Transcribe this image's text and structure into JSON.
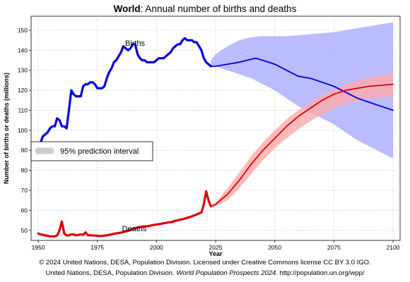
{
  "chart_data": {
    "type": "line",
    "title_bold": "World",
    "title_rest": ": Annual number of births and deaths",
    "xlabel": "Year",
    "ylabel": "Number of births or deaths (millions)",
    "xlim": [
      1947,
      2103
    ],
    "ylim": [
      45,
      157
    ],
    "xticks": [
      1950,
      1975,
      2000,
      2025,
      2050,
      2075,
      2100
    ],
    "yticks": [
      50,
      60,
      70,
      80,
      90,
      100,
      110,
      120,
      130,
      140,
      150
    ],
    "grid": true,
    "annotations": {
      "births": "Births",
      "deaths": "Deaths"
    },
    "legend": {
      "label": "95% prediction interval",
      "placement": "left"
    },
    "colors": {
      "births": "#0000dd",
      "deaths": "#dd0000",
      "births_band": "#aaaaff",
      "deaths_band": "#ffaaaa",
      "legend_swatch": "#cccccc"
    },
    "series": [
      {
        "key": "births",
        "x": [
          1950,
          1951,
          1952,
          1953,
          1954,
          1955,
          1956,
          1957,
          1958,
          1959,
          1960,
          1961,
          1962,
          1963,
          1964,
          1965,
          1966,
          1967,
          1968,
          1969,
          1970,
          1971,
          1972,
          1973,
          1974,
          1975,
          1976,
          1977,
          1978,
          1979,
          1980,
          1981,
          1982,
          1983,
          1984,
          1985,
          1986,
          1987,
          1988,
          1989,
          1990,
          1991,
          1992,
          1993,
          1994,
          1995,
          1996,
          1997,
          1998,
          1999,
          2000,
          2001,
          2002,
          2003,
          2004,
          2005,
          2006,
          2007,
          2008,
          2009,
          2010,
          2011,
          2012,
          2013,
          2014,
          2015,
          2016,
          2017,
          2018,
          2019,
          2020,
          2021,
          2022,
          2023,
          2025,
          2030,
          2035,
          2040,
          2042,
          2045,
          2050,
          2055,
          2060,
          2065,
          2070,
          2075,
          2080,
          2085,
          2090,
          2095,
          2100
        ],
        "values": [
          92,
          94,
          97,
          98,
          99,
          101,
          102,
          102,
          106,
          105,
          102,
          102,
          101,
          110,
          120,
          118,
          117,
          117,
          117,
          122,
          123,
          123,
          124,
          124,
          123,
          121,
          121,
          121,
          122,
          126,
          129,
          131,
          134,
          135,
          137,
          139,
          142,
          141,
          140,
          141,
          143,
          143,
          138,
          136,
          135,
          135,
          134,
          134,
          134,
          134,
          135,
          136,
          136,
          136,
          137,
          138,
          139,
          141,
          142,
          143,
          143,
          145,
          146,
          145,
          145,
          145,
          144,
          144,
          142,
          140,
          136,
          134,
          133,
          132,
          132,
          133,
          134,
          135.5,
          136,
          135,
          133,
          130,
          127,
          126,
          124,
          122,
          119,
          116,
          114,
          112,
          110
        ]
      },
      {
        "key": "deaths",
        "x": [
          1950,
          1951,
          1952,
          1953,
          1954,
          1955,
          1956,
          1957,
          1958,
          1959,
          1960,
          1961,
          1962,
          1963,
          1964,
          1965,
          1966,
          1967,
          1968,
          1969,
          1970,
          1971,
          1972,
          1973,
          1974,
          1975,
          1976,
          1977,
          1978,
          1979,
          1980,
          1981,
          1982,
          1983,
          1984,
          1985,
          1986,
          1987,
          1988,
          1989,
          1990,
          1991,
          1992,
          1993,
          1994,
          1995,
          1996,
          1997,
          1998,
          1999,
          2000,
          2001,
          2002,
          2003,
          2004,
          2005,
          2006,
          2007,
          2008,
          2009,
          2010,
          2011,
          2012,
          2013,
          2014,
          2015,
          2016,
          2017,
          2018,
          2019,
          2020,
          2021,
          2022,
          2023,
          2025,
          2030,
          2035,
          2040,
          2045,
          2050,
          2055,
          2060,
          2065,
          2070,
          2075,
          2080,
          2085,
          2090,
          2095,
          2100
        ],
        "values": [
          48.5,
          48,
          47.8,
          47.5,
          47.3,
          47,
          47,
          47,
          47.5,
          50,
          54.5,
          48.5,
          47.5,
          47.5,
          48,
          48,
          47.5,
          47.7,
          48,
          47.8,
          49,
          47.6,
          47.5,
          47.5,
          47.4,
          47.3,
          47.2,
          47.2,
          47.4,
          47.5,
          47.8,
          48,
          48.3,
          48.5,
          48.7,
          48.9,
          49.2,
          49.5,
          49.8,
          50.2,
          50.8,
          51,
          51.4,
          51.6,
          51.9,
          52,
          52.1,
          52.3,
          52.5,
          52.7,
          53,
          53.1,
          53.3,
          53.6,
          53.7,
          54,
          54.1,
          54.4,
          54.8,
          55,
          55.4,
          55.6,
          55.9,
          56.3,
          56.6,
          57,
          57.5,
          58,
          58.5,
          59,
          63,
          69.5,
          65,
          62,
          63,
          68,
          75,
          83,
          90,
          96,
          102,
          107,
          111,
          115,
          118,
          120,
          121,
          122,
          122.5,
          123
        ]
      }
    ],
    "bands": [
      {
        "key": "births_band",
        "x": [
          2023,
          2025,
          2030,
          2035,
          2040,
          2045,
          2050,
          2055,
          2060,
          2065,
          2070,
          2075,
          2080,
          2085,
          2090,
          2095,
          2100
        ],
        "low": [
          132,
          132,
          130,
          128,
          126,
          123,
          120,
          116,
          112,
          109,
          106,
          103,
          99,
          95,
          92,
          89,
          86
        ],
        "high": [
          135,
          138,
          142,
          145,
          146.5,
          147,
          147,
          147,
          147.5,
          148,
          148.5,
          149,
          150,
          151,
          152,
          153,
          154
        ]
      },
      {
        "key": "deaths_band",
        "x": [
          2023,
          2025,
          2030,
          2035,
          2040,
          2045,
          2050,
          2055,
          2060,
          2065,
          2070,
          2075,
          2080,
          2085,
          2090,
          2095,
          2100
        ],
        "low": [
          61.5,
          62,
          65,
          71,
          78,
          85,
          91,
          96,
          100.5,
          104.5,
          108,
          111,
          113.5,
          115,
          116,
          116.5,
          117
        ],
        "high": [
          62.5,
          64,
          71,
          79,
          87,
          94,
          100,
          105.5,
          110,
          114,
          117.5,
          120.5,
          123,
          125,
          126.5,
          127.5,
          128.5
        ]
      }
    ]
  },
  "footer": {
    "line1": "© 2024 United Nations, DESA, Population Division. Licensed under Creative Commons license CC BY 3.0 IGO.",
    "line2_a": "United Nations, DESA, Population Division.",
    "line2_b": "World Population Prospects 2024",
    "line2_c": ". http://population.un.org/wpp/"
  }
}
